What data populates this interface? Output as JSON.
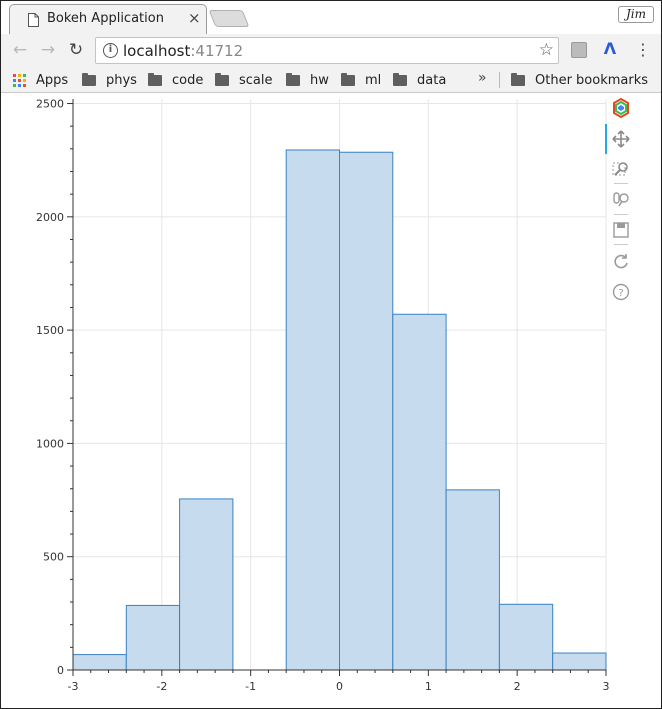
{
  "browser": {
    "tab_title": "Bokeh Application",
    "tab_close": "×",
    "profile": "Jim",
    "url_host": "localhost",
    "url_port": ":41712",
    "bookmarks": [
      {
        "label": "Apps",
        "icon": "apps-grid-icon"
      },
      {
        "label": "phys",
        "icon": "folder-icon"
      },
      {
        "label": "code",
        "icon": "folder-icon"
      },
      {
        "label": "scale",
        "icon": "folder-icon"
      },
      {
        "label": "hw",
        "icon": "folder-icon"
      },
      {
        "label": "ml",
        "icon": "folder-icon"
      },
      {
        "label": "data",
        "icon": "folder-icon"
      }
    ],
    "bookmarks_overflow": "»",
    "other_bookmarks": "Other bookmarks"
  },
  "bokeh_toolbar": {
    "tools": [
      "bokeh-logo-icon",
      "pan-icon",
      "box-zoom-icon",
      "wheel-zoom-icon",
      "save-icon",
      "reset-icon",
      "help-icon"
    ],
    "active_tool": "pan-icon"
  },
  "colors": {
    "bar_fill": "#c6dbee",
    "bar_line": "#3a82c0",
    "grid": "#e6e6e6"
  },
  "chart_data": {
    "type": "bar",
    "title": "",
    "xlabel": "",
    "ylabel": "",
    "xlim": [
      -3,
      3
    ],
    "ylim": [
      0,
      2520
    ],
    "x_ticks": [
      -3,
      -2,
      -1,
      0,
      1,
      2,
      3
    ],
    "y_ticks": [
      0,
      500,
      1000,
      1500,
      2000,
      2500
    ],
    "grid": true,
    "bins": [
      {
        "left": -3.0,
        "right": -2.4,
        "value": 68
      },
      {
        "left": -2.4,
        "right": -1.8,
        "value": 285
      },
      {
        "left": -1.8,
        "right": -1.2,
        "value": 755
      },
      {
        "left": -1.2,
        "right": -0.6,
        "value": 0
      },
      {
        "left": -0.6,
        "right": 0.0,
        "value": 2295
      },
      {
        "left": 0.0,
        "right": 0.6,
        "value": 2285
      },
      {
        "left": 0.6,
        "right": 1.2,
        "value": 1570
      },
      {
        "left": 1.2,
        "right": 1.8,
        "value": 795
      },
      {
        "left": 1.8,
        "right": 2.4,
        "value": 290
      },
      {
        "left": 2.4,
        "right": 3.0,
        "value": 75
      }
    ]
  }
}
